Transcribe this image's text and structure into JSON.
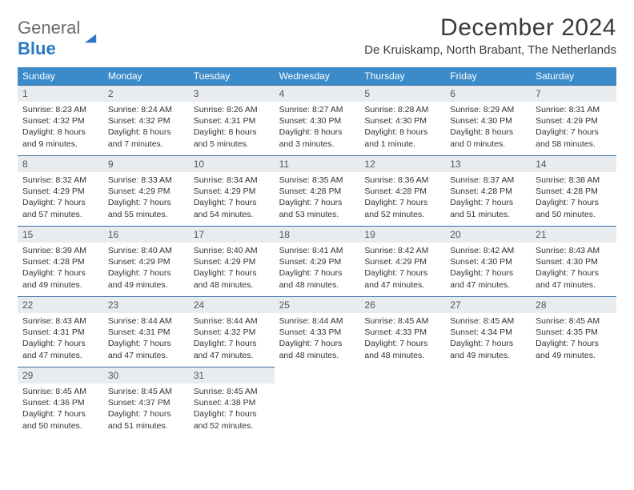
{
  "logo": {
    "word1": "General",
    "word2": "Blue"
  },
  "title": "December 2024",
  "location": "De Kruiskamp, North Brabant, The Netherlands",
  "colors": {
    "header_bg": "#3b8bca",
    "header_text": "#ffffff",
    "daynum_bg": "#e9ecef",
    "row_border": "#3b6fa0",
    "body_text": "#333333",
    "logo_gray": "#6b6b6b",
    "logo_blue": "#2d78c4"
  },
  "weekdays": [
    "Sunday",
    "Monday",
    "Tuesday",
    "Wednesday",
    "Thursday",
    "Friday",
    "Saturday"
  ],
  "days": [
    {
      "n": "1",
      "sunrise": "8:23 AM",
      "sunset": "4:32 PM",
      "daylight": "8 hours and 9 minutes."
    },
    {
      "n": "2",
      "sunrise": "8:24 AM",
      "sunset": "4:32 PM",
      "daylight": "8 hours and 7 minutes."
    },
    {
      "n": "3",
      "sunrise": "8:26 AM",
      "sunset": "4:31 PM",
      "daylight": "8 hours and 5 minutes."
    },
    {
      "n": "4",
      "sunrise": "8:27 AM",
      "sunset": "4:30 PM",
      "daylight": "8 hours and 3 minutes."
    },
    {
      "n": "5",
      "sunrise": "8:28 AM",
      "sunset": "4:30 PM",
      "daylight": "8 hours and 1 minute."
    },
    {
      "n": "6",
      "sunrise": "8:29 AM",
      "sunset": "4:30 PM",
      "daylight": "8 hours and 0 minutes."
    },
    {
      "n": "7",
      "sunrise": "8:31 AM",
      "sunset": "4:29 PM",
      "daylight": "7 hours and 58 minutes."
    },
    {
      "n": "8",
      "sunrise": "8:32 AM",
      "sunset": "4:29 PM",
      "daylight": "7 hours and 57 minutes."
    },
    {
      "n": "9",
      "sunrise": "8:33 AM",
      "sunset": "4:29 PM",
      "daylight": "7 hours and 55 minutes."
    },
    {
      "n": "10",
      "sunrise": "8:34 AM",
      "sunset": "4:29 PM",
      "daylight": "7 hours and 54 minutes."
    },
    {
      "n": "11",
      "sunrise": "8:35 AM",
      "sunset": "4:28 PM",
      "daylight": "7 hours and 53 minutes."
    },
    {
      "n": "12",
      "sunrise": "8:36 AM",
      "sunset": "4:28 PM",
      "daylight": "7 hours and 52 minutes."
    },
    {
      "n": "13",
      "sunrise": "8:37 AM",
      "sunset": "4:28 PM",
      "daylight": "7 hours and 51 minutes."
    },
    {
      "n": "14",
      "sunrise": "8:38 AM",
      "sunset": "4:28 PM",
      "daylight": "7 hours and 50 minutes."
    },
    {
      "n": "15",
      "sunrise": "8:39 AM",
      "sunset": "4:28 PM",
      "daylight": "7 hours and 49 minutes."
    },
    {
      "n": "16",
      "sunrise": "8:40 AM",
      "sunset": "4:29 PM",
      "daylight": "7 hours and 49 minutes."
    },
    {
      "n": "17",
      "sunrise": "8:40 AM",
      "sunset": "4:29 PM",
      "daylight": "7 hours and 48 minutes."
    },
    {
      "n": "18",
      "sunrise": "8:41 AM",
      "sunset": "4:29 PM",
      "daylight": "7 hours and 48 minutes."
    },
    {
      "n": "19",
      "sunrise": "8:42 AM",
      "sunset": "4:29 PM",
      "daylight": "7 hours and 47 minutes."
    },
    {
      "n": "20",
      "sunrise": "8:42 AM",
      "sunset": "4:30 PM",
      "daylight": "7 hours and 47 minutes."
    },
    {
      "n": "21",
      "sunrise": "8:43 AM",
      "sunset": "4:30 PM",
      "daylight": "7 hours and 47 minutes."
    },
    {
      "n": "22",
      "sunrise": "8:43 AM",
      "sunset": "4:31 PM",
      "daylight": "7 hours and 47 minutes."
    },
    {
      "n": "23",
      "sunrise": "8:44 AM",
      "sunset": "4:31 PM",
      "daylight": "7 hours and 47 minutes."
    },
    {
      "n": "24",
      "sunrise": "8:44 AM",
      "sunset": "4:32 PM",
      "daylight": "7 hours and 47 minutes."
    },
    {
      "n": "25",
      "sunrise": "8:44 AM",
      "sunset": "4:33 PM",
      "daylight": "7 hours and 48 minutes."
    },
    {
      "n": "26",
      "sunrise": "8:45 AM",
      "sunset": "4:33 PM",
      "daylight": "7 hours and 48 minutes."
    },
    {
      "n": "27",
      "sunrise": "8:45 AM",
      "sunset": "4:34 PM",
      "daylight": "7 hours and 49 minutes."
    },
    {
      "n": "28",
      "sunrise": "8:45 AM",
      "sunset": "4:35 PM",
      "daylight": "7 hours and 49 minutes."
    },
    {
      "n": "29",
      "sunrise": "8:45 AM",
      "sunset": "4:36 PM",
      "daylight": "7 hours and 50 minutes."
    },
    {
      "n": "30",
      "sunrise": "8:45 AM",
      "sunset": "4:37 PM",
      "daylight": "7 hours and 51 minutes."
    },
    {
      "n": "31",
      "sunrise": "8:45 AM",
      "sunset": "4:38 PM",
      "daylight": "7 hours and 52 minutes."
    }
  ],
  "labels": {
    "sunrise": "Sunrise: ",
    "sunset": "Sunset: ",
    "daylight": "Daylight: "
  },
  "layout": {
    "first_day_column": 0,
    "total_cells": 35
  }
}
